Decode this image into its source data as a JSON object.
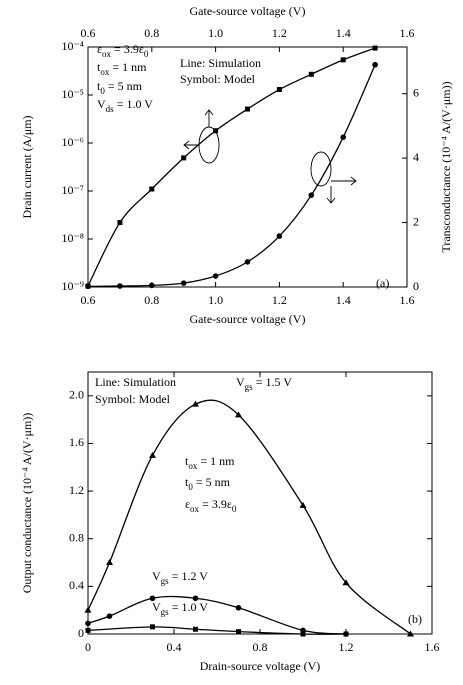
{
  "chart_data": [
    {
      "type": "line",
      "xlabel": "Gate-source voltage (V)",
      "x2label": "Gate-source voltage (V)",
      "ylabel": "Drain current (A/μm)",
      "y2label": "Transconductance (10⁻⁴ A/(V·μm))",
      "xlim": [
        0.6,
        1.6
      ],
      "xticks": [
        0.6,
        0.8,
        {
          "value": 1,
          "label": "1.0"
        },
        1.2,
        1.4,
        1.6
      ],
      "ylog": true,
      "ylim": [
        1e-09,
        0.0001
      ],
      "yticks": [
        {
          "value": 1e-09,
          "label": "10⁻⁹"
        },
        {
          "value": 1e-08,
          "label": "10⁻⁸"
        },
        {
          "value": 1e-07,
          "label": "10⁻⁷"
        },
        {
          "value": 1e-06,
          "label": "10⁻⁶"
        },
        {
          "value": 1e-05,
          "label": "10⁻⁵"
        },
        {
          "value": 0.0001,
          "label": "10⁻⁴"
        }
      ],
      "y2lim": [
        0,
        7.45
      ],
      "y2ticks": [
        0,
        2,
        4,
        6
      ],
      "annotations": [
        "εox = 3.9ε0",
        "tox = 1 nm",
        "t0 = 5 nm",
        "Vds = 1.0 V",
        "Line: Simulation",
        "Symbol: Model"
      ],
      "panel_label": "(a)",
      "series": [
        {
          "x": [
            0.6,
            0.7,
            0.8,
            0.9,
            1.0,
            1.1,
            1.2,
            1.3,
            1.4,
            1.5
          ],
          "values": [
            1.05e-09,
            2.2e-08,
            1.1e-07,
            4.9e-07,
            1.8e-06,
            5.1e-06,
            1.3e-05,
            2.7e-05,
            5.4e-05,
            9.5e-05
          ],
          "marker": "square",
          "color": "#000000"
        },
        {
          "x": [
            0.6,
            0.7,
            0.8,
            0.9,
            1.0,
            1.1,
            1.2,
            1.3,
            1.4,
            1.5
          ],
          "values": [
            0.02,
            0.03,
            0.05,
            0.12,
            0.34,
            0.78,
            1.58,
            2.85,
            4.65,
            6.9
          ],
          "axis": "y2",
          "marker": "circle",
          "color": "#000000"
        }
      ]
    },
    {
      "type": "line",
      "xlabel": "Drain-source voltage (V)",
      "ylabel": "Output conductance (10⁻⁴ A/(V·μm))",
      "xlim": [
        0,
        1.6
      ],
      "xticks": [
        0,
        0.4,
        0.8,
        1.2,
        1.6
      ],
      "ylim": [
        0,
        2.2
      ],
      "yticks": [
        0,
        0.4,
        0.8,
        1.2,
        1.6,
        {
          "value": 2,
          "label": "2.0"
        }
      ],
      "annotations": [
        "Line: Simulation",
        "Symbol: Model",
        "tox = 1 nm",
        "t0 = 5 nm",
        "εox = 3.9ε0"
      ],
      "panel_label": "(b)",
      "series": [
        {
          "name": "Vgs = 1.5 V",
          "x": [
            0,
            0.1,
            0.3,
            0.5,
            0.7,
            1.0,
            1.2,
            1.5
          ],
          "values": [
            0.2,
            0.6,
            1.5,
            1.93,
            1.84,
            1.08,
            0.43,
            0
          ],
          "marker": "triangle",
          "color": "#000000"
        },
        {
          "name": "Vgs = 1.2 V",
          "x": [
            0,
            0.1,
            0.3,
            0.5,
            0.7,
            1.0,
            1.2
          ],
          "values": [
            0.09,
            0.15,
            0.3,
            0.3,
            0.22,
            0.03,
            0
          ],
          "marker": "circle",
          "color": "#000000"
        },
        {
          "name": "Vgs = 1.0 V",
          "x": [
            0,
            0.3,
            0.5,
            0.7,
            1.0,
            1.2
          ],
          "values": [
            0.03,
            0.06,
            0.04,
            0.02,
            0,
            0
          ],
          "marker": "square",
          "color": "#000000"
        }
      ]
    }
  ]
}
